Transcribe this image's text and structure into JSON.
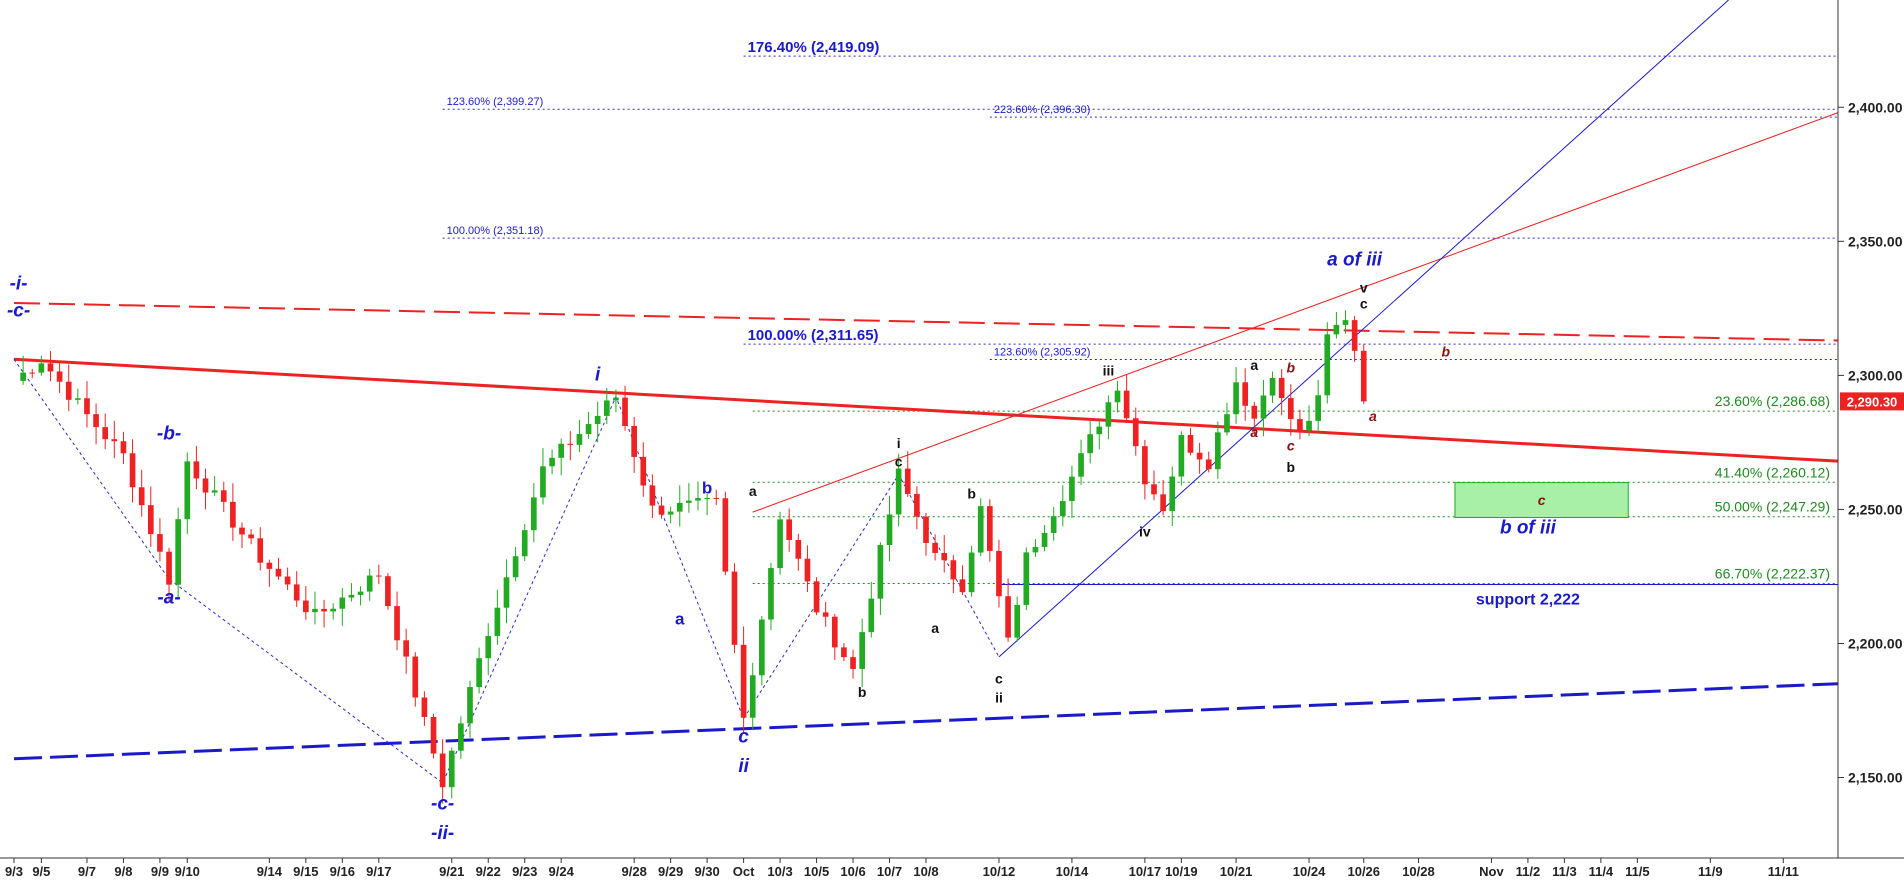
{
  "chart_data": {
    "type": "candlestick",
    "title": "",
    "y_axis": {
      "range": [
        2120,
        2440
      ],
      "ticks": [
        "2,150.00",
        "2,200.00",
        "2,250.00",
        "2,300.00",
        "2,350.00",
        "2,400.00"
      ],
      "tick_values": [
        2150,
        2200,
        2250,
        2300,
        2350,
        2400
      ]
    },
    "x_axis": {
      "ticks": [
        "9/3",
        "9/5",
        "9/7",
        "9/8",
        "9/9",
        "9/10",
        "9/14",
        "9/15",
        "9/16",
        "9/17",
        "9/21",
        "9/22",
        "9/23",
        "9/24",
        "9/28",
        "9/29",
        "9/30",
        "Oct",
        "10/3",
        "10/5",
        "10/6",
        "10/7",
        "10/8",
        "10/12",
        "10/14",
        "10/17",
        "10/19",
        "10/21",
        "10/24",
        "10/26",
        "10/28",
        "Nov",
        "11/2",
        "11/3",
        "11/4",
        "11/5",
        "11/9",
        "11/11"
      ],
      "tick_index": [
        0,
        3,
        8,
        12,
        16,
        19,
        28,
        32,
        36,
        40,
        48,
        52,
        56,
        60,
        68,
        72,
        76,
        80,
        84,
        88,
        92,
        96,
        100,
        108,
        116,
        124,
        128,
        134,
        142,
        148,
        154,
        162,
        166,
        170,
        174,
        178,
        186,
        194
      ]
    },
    "last_price": {
      "value": 2290.3,
      "label": "2,290.30"
    },
    "key_points": [
      {
        "i": 0,
        "v": 2298
      },
      {
        "i": 3,
        "v": 2306
      },
      {
        "i": 8,
        "v": 2285
      },
      {
        "i": 12,
        "v": 2270
      },
      {
        "i": 17,
        "v": 2224
      },
      {
        "i": 19,
        "v": 2268
      },
      {
        "i": 27,
        "v": 2232
      },
      {
        "i": 33,
        "v": 2210
      },
      {
        "i": 40,
        "v": 2226
      },
      {
        "i": 47,
        "v": 2148
      },
      {
        "i": 52,
        "v": 2205
      },
      {
        "i": 58,
        "v": 2265
      },
      {
        "i": 66,
        "v": 2292
      },
      {
        "i": 70,
        "v": 2250
      },
      {
        "i": 77,
        "v": 2252
      },
      {
        "i": 80,
        "v": 2172
      },
      {
        "i": 84,
        "v": 2248
      },
      {
        "i": 88,
        "v": 2213
      },
      {
        "i": 92,
        "v": 2190
      },
      {
        "i": 97,
        "v": 2263
      },
      {
        "i": 101,
        "v": 2232
      },
      {
        "i": 104,
        "v": 2222
      },
      {
        "i": 106,
        "v": 2250
      },
      {
        "i": 109,
        "v": 2200
      },
      {
        "i": 111,
        "v": 2232
      },
      {
        "i": 116,
        "v": 2262
      },
      {
        "i": 121,
        "v": 2297
      },
      {
        "i": 124,
        "v": 2262
      },
      {
        "i": 126,
        "v": 2251
      },
      {
        "i": 128,
        "v": 2276
      },
      {
        "i": 131,
        "v": 2268
      },
      {
        "i": 134,
        "v": 2298
      },
      {
        "i": 136,
        "v": 2284
      },
      {
        "i": 138,
        "v": 2302
      },
      {
        "i": 139,
        "v": 2290
      },
      {
        "i": 141,
        "v": 2278
      },
      {
        "i": 143,
        "v": 2290
      },
      {
        "i": 144,
        "v": 2314
      },
      {
        "i": 146,
        "v": 2322
      },
      {
        "i": 147,
        "v": 2310
      },
      {
        "i": 148,
        "v": 2290
      }
    ],
    "fib_levels": [
      {
        "label": "176.40% (2,419.09)",
        "value": 2419.09,
        "from": 80,
        "size": "big"
      },
      {
        "label": "123.60% (2,399.27)",
        "value": 2399.27,
        "from": 47,
        "size": "small"
      },
      {
        "label": "223.60% (2,396.30)",
        "value": 2396.3,
        "from": 107,
        "size": "small"
      },
      {
        "label": "100.00% (2,351.18)",
        "value": 2351.18,
        "from": 47,
        "size": "small"
      },
      {
        "label": "100.00% (2,311.65)",
        "value": 2311.65,
        "from": 80,
        "size": "big"
      },
      {
        "label": "123.60% (2,305.92)",
        "value": 2305.92,
        "from": 107,
        "size": "small"
      }
    ],
    "retracements": [
      {
        "label": "23.60% (2,286.68)",
        "value": 2286.68
      },
      {
        "label": "41.40% (2,260.12)",
        "value": 2260.12
      },
      {
        "label": "50.00% (2,247.29)",
        "value": 2247.29
      },
      {
        "label": "66.70% (2,222.37)",
        "value": 2222.37
      }
    ],
    "trendlines": [
      {
        "name": "red-solid-thick",
        "color": "#ee2222",
        "style": "solid",
        "width": 3,
        "from": {
          "i": 0,
          "v": 2306
        },
        "to": {
          "i": 200,
          "v": 2268
        }
      },
      {
        "name": "red-dashed",
        "color": "#ee2222",
        "style": "dashed",
        "width": 2,
        "from": {
          "i": 0,
          "v": 2327
        },
        "to": {
          "i": 200,
          "v": 2313
        }
      },
      {
        "name": "red-thin-channel",
        "color": "#ee2222",
        "style": "solid",
        "width": 1,
        "from": {
          "i": 81,
          "v": 2249
        },
        "to": {
          "i": 200,
          "v": 2398
        }
      },
      {
        "name": "blue-dashed-base",
        "color": "#1a1acc",
        "style": "dashed",
        "width": 3,
        "from": {
          "i": 0,
          "v": 2157
        },
        "to": {
          "i": 200,
          "v": 2185
        }
      },
      {
        "name": "blue-thin-channel",
        "color": "#1a1acc",
        "style": "solid",
        "width": 1,
        "from": {
          "i": 108,
          "v": 2195
        },
        "to": {
          "i": 188,
          "v": 2440
        }
      }
    ],
    "support": {
      "label": "support 2,222",
      "value": 2222,
      "from": 108,
      "to": 200
    },
    "target_box": {
      "label": "c",
      "from_value": 2260,
      "to_value": 2247,
      "from": 158,
      "to": 177,
      "color": "#a8f0a8"
    },
    "wave_labels": [
      {
        "text": "-i-",
        "i": 0.5,
        "v": 2332,
        "style": "blue-i"
      },
      {
        "text": "-c-",
        "i": 0.5,
        "v": 2322,
        "style": "blue-i"
      },
      {
        "text": "-b-",
        "i": 17,
        "v": 2276,
        "style": "blue-i"
      },
      {
        "text": "-a-",
        "i": 17,
        "v": 2215,
        "style": "blue-i"
      },
      {
        "text": "i",
        "i": 64,
        "v": 2298,
        "style": "blue-i"
      },
      {
        "text": "-c-",
        "i": 47,
        "v": 2138,
        "style": "blue-i"
      },
      {
        "text": "-ii-",
        "i": 47,
        "v": 2127,
        "style": "blue-i"
      },
      {
        "text": "b",
        "i": 76,
        "v": 2256,
        "style": "blue"
      },
      {
        "text": "a",
        "i": 73,
        "v": 2207,
        "style": "blue"
      },
      {
        "text": "c",
        "i": 80,
        "v": 2163,
        "style": "blue-i"
      },
      {
        "text": "ii",
        "i": 80,
        "v": 2152,
        "style": "blue-i"
      },
      {
        "text": "a",
        "i": 81,
        "v": 2255,
        "style": "black"
      },
      {
        "text": "b",
        "i": 93,
        "v": 2180,
        "style": "black"
      },
      {
        "text": "i",
        "i": 97,
        "v": 2273,
        "style": "black"
      },
      {
        "text": "c",
        "i": 97,
        "v": 2266,
        "style": "black"
      },
      {
        "text": "b",
        "i": 105,
        "v": 2254,
        "style": "black"
      },
      {
        "text": "a",
        "i": 101,
        "v": 2204,
        "style": "black"
      },
      {
        "text": "c",
        "i": 108,
        "v": 2185,
        "style": "black"
      },
      {
        "text": "ii",
        "i": 108,
        "v": 2178,
        "style": "black"
      },
      {
        "text": "iii",
        "i": 120,
        "v": 2300,
        "style": "black"
      },
      {
        "text": "iv",
        "i": 124,
        "v": 2240,
        "style": "black"
      },
      {
        "text": "a",
        "i": 136,
        "v": 2302,
        "style": "black"
      },
      {
        "text": "a",
        "i": 136,
        "v": 2277,
        "style": "red"
      },
      {
        "text": "b",
        "i": 140,
        "v": 2301,
        "style": "red"
      },
      {
        "text": "c",
        "i": 140,
        "v": 2272,
        "style": "red"
      },
      {
        "text": "b",
        "i": 140,
        "v": 2264,
        "style": "black"
      },
      {
        "text": "v",
        "i": 148,
        "v": 2331,
        "style": "black"
      },
      {
        "text": "c",
        "i": 148,
        "v": 2325,
        "style": "black"
      },
      {
        "text": "a",
        "i": 149,
        "v": 2283,
        "style": "red"
      },
      {
        "text": "b",
        "i": 157,
        "v": 2307,
        "style": "red"
      }
    ],
    "annotations": [
      {
        "text": "a of iii",
        "i": 147,
        "v": 2341,
        "style": "big"
      },
      {
        "text": "b of iii",
        "i": 166,
        "v": 2241,
        "style": "big"
      }
    ],
    "colors": {
      "up": "#22aa22",
      "down": "#ee2222",
      "fib": "#2b2bcc",
      "retrace": "#1f8a1f",
      "price_tag": "#ee2222"
    }
  }
}
